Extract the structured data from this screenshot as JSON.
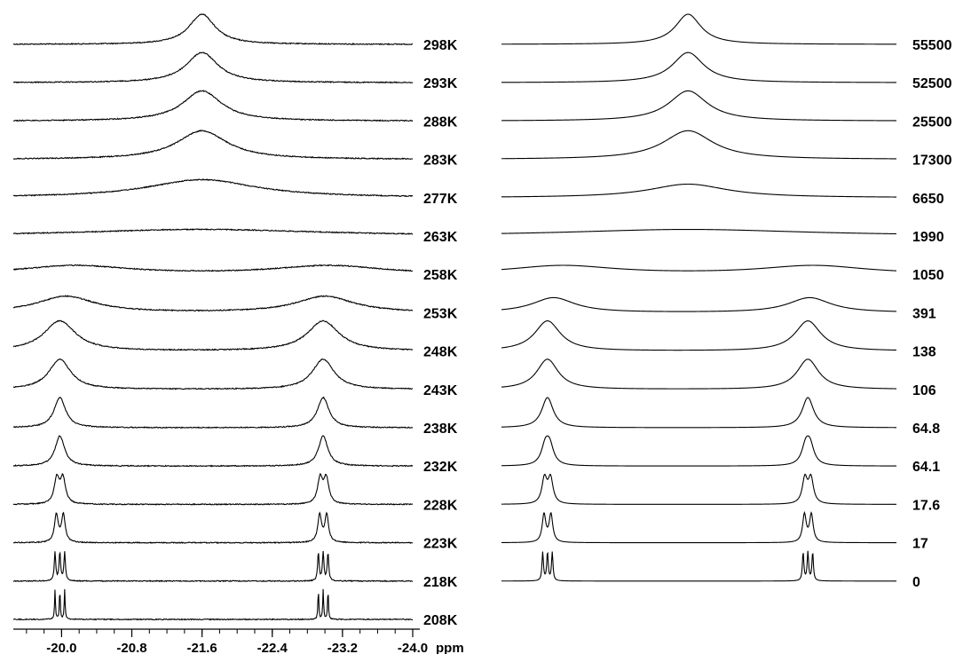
{
  "chart_data": [
    {
      "type": "line",
      "subtype": "stacked-nmr-spectra",
      "title": "",
      "xlabel": "ppm",
      "xlim": [
        -19.45,
        -24.0
      ],
      "x_tick_labels": [
        "-20.0",
        "-20.8",
        "-21.6",
        "-22.4",
        "-23.2",
        "-24.0"
      ],
      "x_ticks": [
        -20.0,
        -20.8,
        -21.6,
        -22.4,
        -23.2,
        -24.0
      ],
      "x_unit": "ppm",
      "noise": "visible baseline noise",
      "series": [
        {
          "name": "298K",
          "type": "single",
          "center": -21.6,
          "width": 0.18,
          "height": 1.0
        },
        {
          "name": "293K",
          "type": "single",
          "center": -21.6,
          "width": 0.22,
          "height": 1.0
        },
        {
          "name": "288K",
          "type": "single",
          "center": -21.6,
          "width": 0.27,
          "height": 1.0
        },
        {
          "name": "283K",
          "type": "single",
          "center": -21.6,
          "width": 0.35,
          "height": 0.95
        },
        {
          "name": "277K",
          "type": "single",
          "center": -21.6,
          "width": 0.75,
          "height": 0.6
        },
        {
          "name": "263K",
          "type": "single",
          "center": -21.6,
          "width": 1.7,
          "height": 0.22
        },
        {
          "name": "258K",
          "type": "pair",
          "centers": [
            -20.15,
            -23.05
          ],
          "width": 0.75,
          "height": 0.3
        },
        {
          "name": "253K",
          "type": "pair",
          "centers": [
            -20.05,
            -23.0
          ],
          "width": 0.4,
          "height": 0.55
        },
        {
          "name": "248K",
          "type": "pair",
          "centers": [
            -19.98,
            -22.98
          ],
          "width": 0.22,
          "height": 1.0
        },
        {
          "name": "243K",
          "type": "pair",
          "centers": [
            -19.98,
            -22.98
          ],
          "width": 0.15,
          "height": 1.0
        },
        {
          "name": "238K",
          "type": "pair",
          "centers": [
            -19.98,
            -22.98
          ],
          "width": 0.08,
          "height": 1.0
        },
        {
          "name": "232K",
          "type": "pair",
          "centers": [
            -19.98,
            -22.98
          ],
          "width": 0.065,
          "height": 1.0
        },
        {
          "name": "228K",
          "type": "multiplet",
          "centers": [
            -19.98,
            -22.98
          ],
          "lines": 2,
          "spacing": 0.07,
          "width": 0.035,
          "height": 1.0
        },
        {
          "name": "223K",
          "type": "multiplet",
          "centers": [
            -19.98,
            -22.98
          ],
          "lines": 2,
          "spacing": 0.08,
          "width": 0.025,
          "height": 1.0
        },
        {
          "name": "218K",
          "type": "multiplet",
          "centers": [
            -19.98,
            -22.98
          ],
          "lines": 3,
          "spacing": 0.055,
          "width": 0.01,
          "height": 1.0
        },
        {
          "name": "208K",
          "type": "multiplet",
          "centers": [
            -19.98,
            -22.98
          ],
          "lines": 3,
          "spacing": 0.055,
          "width": 0.006,
          "height": 1.0
        }
      ]
    },
    {
      "type": "line",
      "subtype": "stacked-simulated-spectra",
      "title": "",
      "xlabel": "",
      "xlim": [
        -19.45,
        -24.0
      ],
      "x_unit": "ppm",
      "noise": "none",
      "series": [
        {
          "name": "55500",
          "type": "single",
          "center": -21.6,
          "width": 0.18,
          "height": 1.0
        },
        {
          "name": "52500",
          "type": "single",
          "center": -21.6,
          "width": 0.22,
          "height": 1.0
        },
        {
          "name": "25500",
          "type": "single",
          "center": -21.6,
          "width": 0.27,
          "height": 1.0
        },
        {
          "name": "17300",
          "type": "single",
          "center": -21.6,
          "width": 0.35,
          "height": 0.95
        },
        {
          "name": "6650",
          "type": "single",
          "center": -21.6,
          "width": 0.55,
          "height": 0.45
        },
        {
          "name": "1990",
          "type": "single",
          "center": -21.6,
          "width": 1.7,
          "height": 0.22
        },
        {
          "name": "1050",
          "type": "pair",
          "centers": [
            -20.15,
            -23.05
          ],
          "width": 0.75,
          "height": 0.3
        },
        {
          "name": "391",
          "type": "pair",
          "centers": [
            -20.05,
            -23.0
          ],
          "width": 0.3,
          "height": 0.5
        },
        {
          "name": "138",
          "type": "pair",
          "centers": [
            -19.98,
            -22.98
          ],
          "width": 0.18,
          "height": 1.0
        },
        {
          "name": "106",
          "type": "pair",
          "centers": [
            -19.98,
            -22.98
          ],
          "width": 0.15,
          "height": 1.0
        },
        {
          "name": "64.8",
          "type": "pair",
          "centers": [
            -19.98,
            -22.98
          ],
          "width": 0.08,
          "height": 1.0
        },
        {
          "name": "64.1",
          "type": "multiplet",
          "centers": [
            -19.98,
            -22.98
          ],
          "lines": 2,
          "spacing": 0.05,
          "width": 0.055,
          "height": 1.0
        },
        {
          "name": "17.6",
          "type": "multiplet",
          "centers": [
            -19.98,
            -22.98
          ],
          "lines": 2,
          "spacing": 0.07,
          "width": 0.035,
          "height": 1.0
        },
        {
          "name": "17",
          "type": "multiplet",
          "centers": [
            -19.98,
            -22.98
          ],
          "lines": 2,
          "spacing": 0.08,
          "width": 0.025,
          "height": 1.0
        },
        {
          "name": "0",
          "type": "multiplet",
          "centers": [
            -19.98,
            -22.98
          ],
          "lines": 3,
          "spacing": 0.055,
          "width": 0.01,
          "height": 1.0
        }
      ]
    }
  ]
}
